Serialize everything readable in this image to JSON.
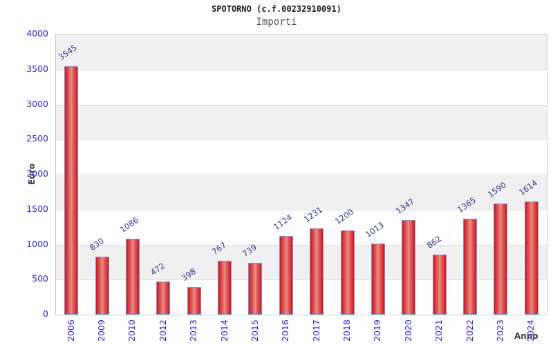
{
  "chart_data": {
    "type": "bar",
    "title": "SPOTORNO (c.f.00232910091)",
    "subtitle": "Importi",
    "xlabel": "Anno",
    "ylabel": "Euro",
    "categories": [
      "2006",
      "2009",
      "2010",
      "2012",
      "2013",
      "2014",
      "2015",
      "2016",
      "2017",
      "2018",
      "2019",
      "2020",
      "2021",
      "2022",
      "2023",
      "2024"
    ],
    "values": [
      3545,
      830,
      1086,
      472,
      398,
      767,
      739,
      1124,
      1231,
      1200,
      1013,
      1347,
      862,
      1365,
      1590,
      1614
    ],
    "ylim": [
      0,
      4000
    ],
    "ytick_step": 500,
    "ytick_labels": [
      "0",
      "500",
      "1000",
      "1500",
      "2000",
      "2500",
      "3000",
      "3500",
      "4000"
    ],
    "grid": "horizontal-bands",
    "legend": null,
    "colors": {
      "bar_fill_edge": "#cf1014",
      "bar_fill_center": "#d8978f",
      "bar_border": "#55a0f0",
      "band_gray": "#f0f0f1",
      "gridline": "#e0e0e0",
      "frame": "#c9c9c9",
      "tick_label": "#2626e0",
      "value_label": "#333399",
      "axis_title": "#3d3d3d",
      "title_color": "#1a1a1a",
      "subtitle_color": "#555555"
    }
  }
}
